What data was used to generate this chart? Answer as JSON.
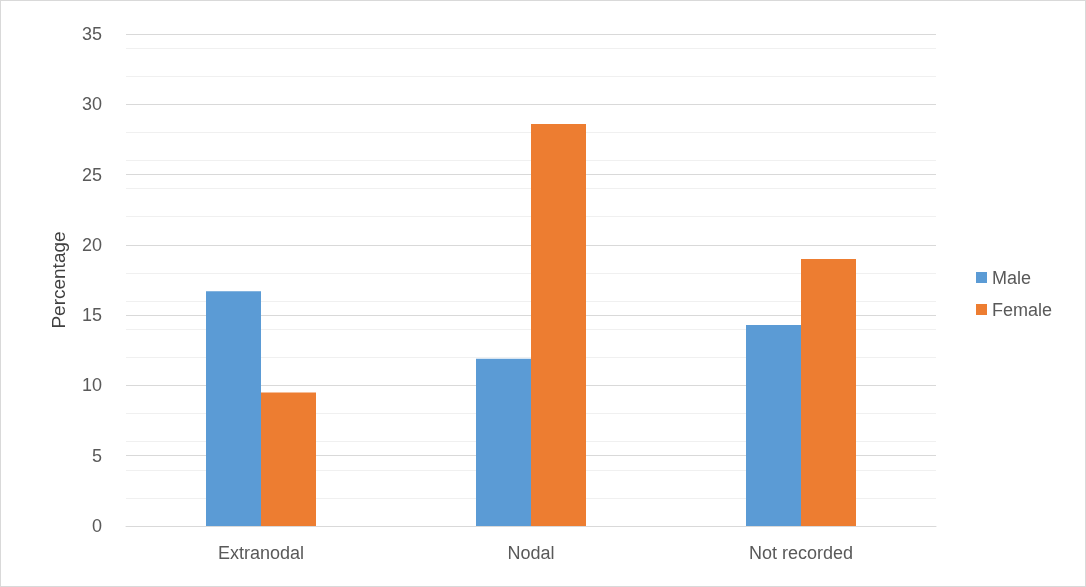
{
  "chart_data": {
    "type": "bar",
    "ylabel": "Percentage",
    "categories": [
      "Extranodal",
      "Nodal",
      "Not recorded"
    ],
    "series": [
      {
        "name": "Male",
        "color": "#5b9bd5",
        "values": [
          16.7,
          11.9,
          14.3
        ]
      },
      {
        "name": "Female",
        "color": "#ed7d31",
        "values": [
          9.5,
          28.6,
          19.0
        ]
      }
    ],
    "ylim": [
      0,
      35
    ],
    "yticks": [
      0,
      5,
      10,
      15,
      20,
      25,
      30,
      35
    ],
    "grid": "y",
    "legend": "right"
  }
}
